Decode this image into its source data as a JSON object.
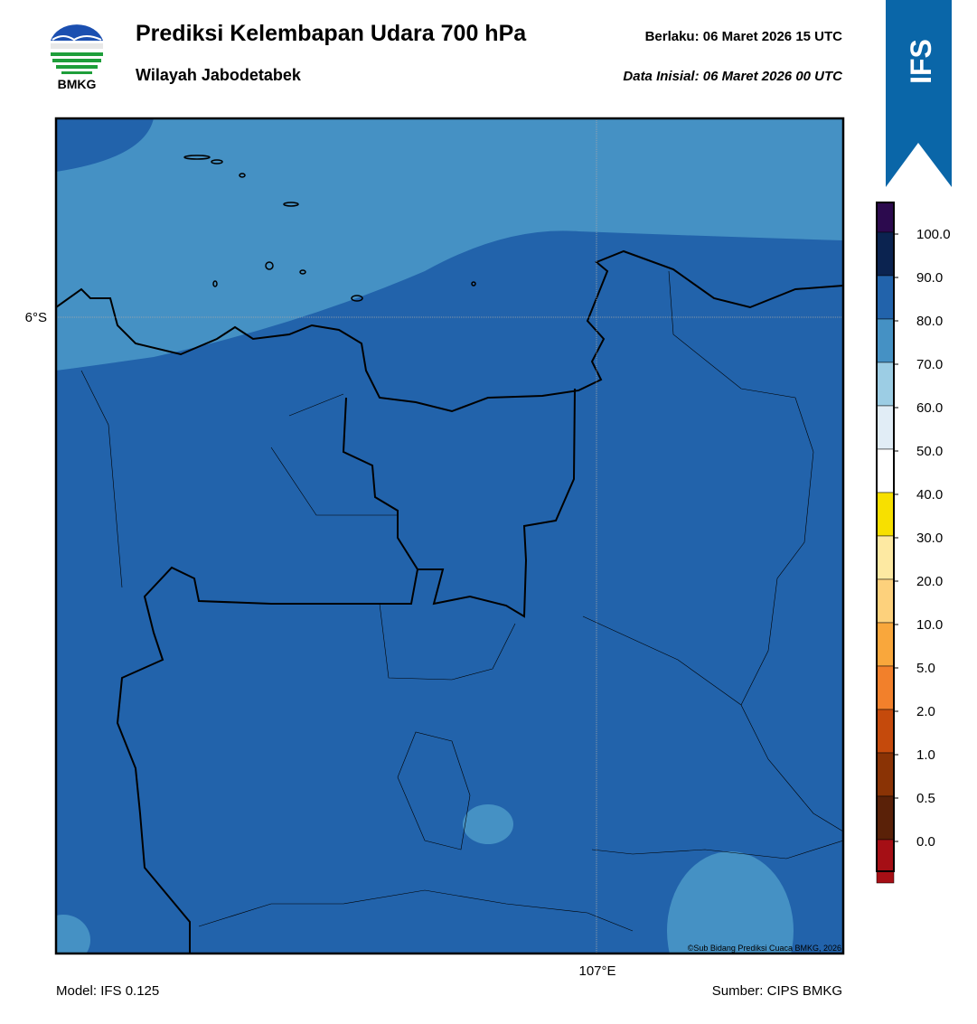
{
  "header": {
    "title": "Prediksi Kelembapan Udara 700 hPa",
    "subtitle": "Wilayah Jabodetabek",
    "valid": "Berlaku:  06 Maret 2026 15 UTC",
    "initial": "Data Inisial:  06 Maret 2026 00 UTC",
    "logo_text": "BMKG",
    "badge": "IFS"
  },
  "map": {
    "lat_label": "6°S",
    "lon_label": "107°E",
    "copyright": "©Sub Bidang Prediksi Cuaca BMKG, 2026"
  },
  "colorbar": {
    "colors": [
      "#2c0a4e",
      "#0b2350",
      "#2263ab",
      "#4591c4",
      "#9ccde4",
      "#e1edf6",
      "#ffffff",
      "#f7e000",
      "#fde9a2",
      "#fdd17c",
      "#f9a73c",
      "#f2802b",
      "#c54a0c",
      "#8a3305",
      "#5a2108",
      "#a50f15",
      "#e53a2c"
    ],
    "ticks": [
      "100.0",
      "90.0",
      "80.0",
      "70.0",
      "60.0",
      "50.0",
      "40.0",
      "30.0",
      "20.0",
      "10.0",
      "5.0",
      "2.0",
      "1.0",
      "0.5",
      "0.0"
    ]
  },
  "footer": {
    "model": "Model: IFS 0.125",
    "source": "Sumber: CIPS BMKG"
  }
}
